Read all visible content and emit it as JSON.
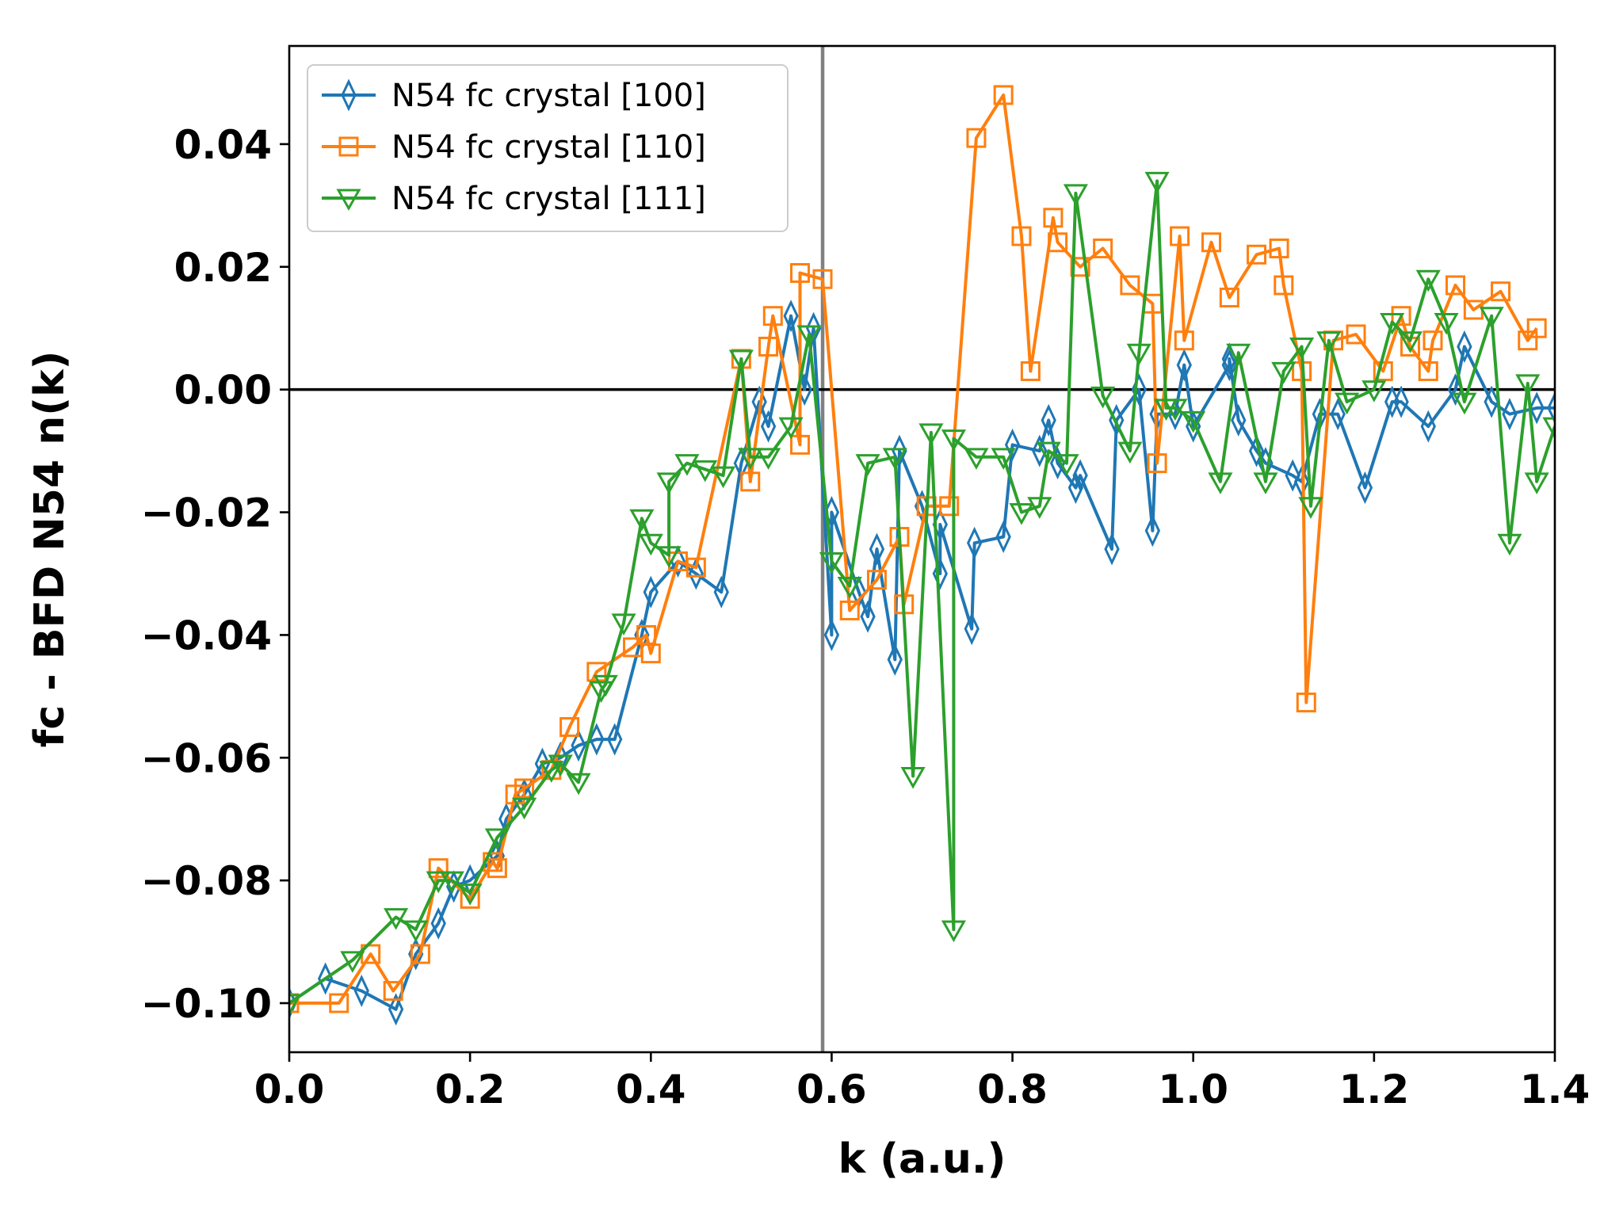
{
  "chart_data": {
    "type": "line",
    "title": "",
    "xlabel": "k (a.u.)",
    "ylabel": "fc - BFD N54 n(k)",
    "xlim": [
      0.0,
      1.4
    ],
    "ylim": [
      -0.108,
      0.056
    ],
    "x_ticks": [
      0.0,
      0.2,
      0.4,
      0.6,
      0.8,
      1.0,
      1.2,
      1.4
    ],
    "x_tick_labels": [
      "0.0",
      "0.2",
      "0.4",
      "0.6",
      "0.8",
      "1.0",
      "1.2",
      "1.4"
    ],
    "y_ticks": [
      -0.1,
      -0.08,
      -0.06,
      -0.04,
      -0.02,
      0.0,
      0.02,
      0.04
    ],
    "y_tick_labels": [
      "−0.10",
      "−0.08",
      "−0.06",
      "−0.04",
      "−0.02",
      "0.00",
      "0.02",
      "0.04"
    ],
    "reference_lines": {
      "vertical_x": 0.59,
      "horizontal_y": 0.0
    },
    "legend": {
      "position": "top-left"
    },
    "series": [
      {
        "name": "N54 fc crystal [100]",
        "color": "#1f77b4",
        "marker": "thin_diamond",
        "points": [
          [
            0.0,
            -0.1
          ],
          [
            0.04,
            -0.096
          ],
          [
            0.08,
            -0.098
          ],
          [
            0.118,
            -0.101
          ],
          [
            0.14,
            -0.092
          ],
          [
            0.165,
            -0.087
          ],
          [
            0.182,
            -0.081
          ],
          [
            0.2,
            -0.08
          ],
          [
            0.23,
            -0.076
          ],
          [
            0.24,
            -0.07
          ],
          [
            0.26,
            -0.066
          ],
          [
            0.28,
            -0.061
          ],
          [
            0.3,
            -0.06
          ],
          [
            0.32,
            -0.058
          ],
          [
            0.34,
            -0.057
          ],
          [
            0.36,
            -0.057
          ],
          [
            0.39,
            -0.04
          ],
          [
            0.4,
            -0.033
          ],
          [
            0.43,
            -0.028
          ],
          [
            0.45,
            -0.03
          ],
          [
            0.478,
            -0.033
          ],
          [
            0.5,
            -0.012
          ],
          [
            0.52,
            -0.002
          ],
          [
            0.53,
            -0.006
          ],
          [
            0.555,
            0.012
          ],
          [
            0.57,
            0.0
          ],
          [
            0.58,
            0.01
          ],
          [
            0.6,
            -0.04
          ],
          [
            0.6,
            -0.02
          ],
          [
            0.63,
            -0.033
          ],
          [
            0.64,
            -0.037
          ],
          [
            0.65,
            -0.026
          ],
          [
            0.67,
            -0.044
          ],
          [
            0.675,
            -0.01
          ],
          [
            0.7,
            -0.019
          ],
          [
            0.72,
            -0.03
          ],
          [
            0.72,
            -0.022
          ],
          [
            0.755,
            -0.039
          ],
          [
            0.758,
            -0.025
          ],
          [
            0.79,
            -0.024
          ],
          [
            0.8,
            -0.009
          ],
          [
            0.83,
            -0.01
          ],
          [
            0.84,
            -0.005
          ],
          [
            0.85,
            -0.012
          ],
          [
            0.87,
            -0.016
          ],
          [
            0.875,
            -0.014
          ],
          [
            0.91,
            -0.026
          ],
          [
            0.915,
            -0.005
          ],
          [
            0.94,
            0.0
          ],
          [
            0.955,
            -0.023
          ],
          [
            0.96,
            -0.004
          ],
          [
            0.98,
            -0.004
          ],
          [
            0.99,
            0.004
          ],
          [
            1.0,
            -0.006
          ],
          [
            1.04,
            0.004
          ],
          [
            1.04,
            0.005
          ],
          [
            1.05,
            -0.005
          ],
          [
            1.07,
            -0.01
          ],
          [
            1.08,
            -0.012
          ],
          [
            1.11,
            -0.014
          ],
          [
            1.12,
            -0.015
          ],
          [
            1.14,
            -0.004
          ],
          [
            1.16,
            -0.004
          ],
          [
            1.19,
            -0.016
          ],
          [
            1.22,
            -0.002
          ],
          [
            1.23,
            -0.002
          ],
          [
            1.26,
            -0.006
          ],
          [
            1.29,
            0.0
          ],
          [
            1.3,
            0.007
          ],
          [
            1.33,
            -0.002
          ],
          [
            1.35,
            -0.004
          ],
          [
            1.38,
            -0.003
          ],
          [
            1.4,
            -0.003
          ]
        ]
      },
      {
        "name": "N54 fc crystal [110]",
        "color": "#ff7f0e",
        "marker": "square",
        "points": [
          [
            0.0,
            -0.1
          ],
          [
            0.055,
            -0.1
          ],
          [
            0.09,
            -0.092
          ],
          [
            0.115,
            -0.098
          ],
          [
            0.145,
            -0.092
          ],
          [
            0.165,
            -0.078
          ],
          [
            0.2,
            -0.083
          ],
          [
            0.225,
            -0.077
          ],
          [
            0.23,
            -0.078
          ],
          [
            0.25,
            -0.066
          ],
          [
            0.26,
            -0.065
          ],
          [
            0.29,
            -0.062
          ],
          [
            0.31,
            -0.055
          ],
          [
            0.34,
            -0.046
          ],
          [
            0.38,
            -0.042
          ],
          [
            0.395,
            -0.04
          ],
          [
            0.4,
            -0.043
          ],
          [
            0.43,
            -0.028
          ],
          [
            0.45,
            -0.029
          ],
          [
            0.5,
            0.005
          ],
          [
            0.51,
            -0.015
          ],
          [
            0.53,
            0.007
          ],
          [
            0.535,
            0.012
          ],
          [
            0.565,
            -0.009
          ],
          [
            0.565,
            0.019
          ],
          [
            0.59,
            0.018
          ],
          [
            0.62,
            -0.036
          ],
          [
            0.65,
            -0.031
          ],
          [
            0.675,
            -0.024
          ],
          [
            0.68,
            -0.035
          ],
          [
            0.705,
            -0.019
          ],
          [
            0.73,
            -0.019
          ],
          [
            0.76,
            0.041
          ],
          [
            0.79,
            0.048
          ],
          [
            0.81,
            0.025
          ],
          [
            0.82,
            0.003
          ],
          [
            0.845,
            0.028
          ],
          [
            0.85,
            0.024
          ],
          [
            0.875,
            0.02
          ],
          [
            0.9,
            0.023
          ],
          [
            0.93,
            0.017
          ],
          [
            0.955,
            0.014
          ],
          [
            0.96,
            -0.012
          ],
          [
            0.985,
            0.025
          ],
          [
            0.99,
            0.008
          ],
          [
            1.02,
            0.024
          ],
          [
            1.04,
            0.015
          ],
          [
            1.07,
            0.022
          ],
          [
            1.095,
            0.023
          ],
          [
            1.1,
            0.017
          ],
          [
            1.12,
            0.003
          ],
          [
            1.125,
            -0.051
          ],
          [
            1.155,
            0.008
          ],
          [
            1.18,
            0.009
          ],
          [
            1.21,
            0.003
          ],
          [
            1.23,
            0.012
          ],
          [
            1.24,
            0.007
          ],
          [
            1.26,
            0.003
          ],
          [
            1.265,
            0.008
          ],
          [
            1.29,
            0.017
          ],
          [
            1.31,
            0.013
          ],
          [
            1.34,
            0.016
          ],
          [
            1.37,
            0.008
          ],
          [
            1.38,
            0.01
          ]
        ]
      },
      {
        "name": "N54 fc crystal [111]",
        "color": "#2ca02c",
        "marker": "triangle_down",
        "points": [
          [
            0.0,
            -0.1
          ],
          [
            0.07,
            -0.093
          ],
          [
            0.118,
            -0.086
          ],
          [
            0.14,
            -0.088
          ],
          [
            0.165,
            -0.08
          ],
          [
            0.18,
            -0.08
          ],
          [
            0.2,
            -0.082
          ],
          [
            0.23,
            -0.073
          ],
          [
            0.26,
            -0.068
          ],
          [
            0.29,
            -0.062
          ],
          [
            0.3,
            -0.061
          ],
          [
            0.32,
            -0.064
          ],
          [
            0.345,
            -0.049
          ],
          [
            0.35,
            -0.048
          ],
          [
            0.37,
            -0.038
          ],
          [
            0.39,
            -0.021
          ],
          [
            0.4,
            -0.025
          ],
          [
            0.42,
            -0.027
          ],
          [
            0.42,
            -0.015
          ],
          [
            0.44,
            -0.012
          ],
          [
            0.46,
            -0.013
          ],
          [
            0.48,
            -0.014
          ],
          [
            0.5,
            0.005
          ],
          [
            0.51,
            -0.011
          ],
          [
            0.53,
            -0.011
          ],
          [
            0.555,
            -0.006
          ],
          [
            0.575,
            0.009
          ],
          [
            0.6,
            -0.028
          ],
          [
            0.62,
            -0.032
          ],
          [
            0.64,
            -0.012
          ],
          [
            0.67,
            -0.011
          ],
          [
            0.69,
            -0.063
          ],
          [
            0.71,
            -0.007
          ],
          [
            0.735,
            -0.088
          ],
          [
            0.735,
            -0.008
          ],
          [
            0.76,
            -0.011
          ],
          [
            0.79,
            -0.011
          ],
          [
            0.81,
            -0.02
          ],
          [
            0.83,
            -0.019
          ],
          [
            0.84,
            -0.01
          ],
          [
            0.86,
            -0.012
          ],
          [
            0.87,
            0.032
          ],
          [
            0.9,
            -0.001
          ],
          [
            0.93,
            -0.01
          ],
          [
            0.94,
            0.006
          ],
          [
            0.96,
            0.034
          ],
          [
            0.97,
            -0.003
          ],
          [
            0.98,
            -0.003
          ],
          [
            1.0,
            -0.005
          ],
          [
            1.03,
            -0.015
          ],
          [
            1.05,
            0.006
          ],
          [
            1.08,
            -0.015
          ],
          [
            1.1,
            0.003
          ],
          [
            1.12,
            0.007
          ],
          [
            1.13,
            -0.019
          ],
          [
            1.15,
            0.008
          ],
          [
            1.17,
            -0.002
          ],
          [
            1.2,
            0.0
          ],
          [
            1.22,
            0.011
          ],
          [
            1.24,
            0.008
          ],
          [
            1.26,
            0.018
          ],
          [
            1.28,
            0.011
          ],
          [
            1.3,
            -0.002
          ],
          [
            1.33,
            0.012
          ],
          [
            1.35,
            -0.025
          ],
          [
            1.37,
            0.001
          ],
          [
            1.38,
            -0.015
          ],
          [
            1.4,
            -0.006
          ]
        ]
      }
    ]
  }
}
